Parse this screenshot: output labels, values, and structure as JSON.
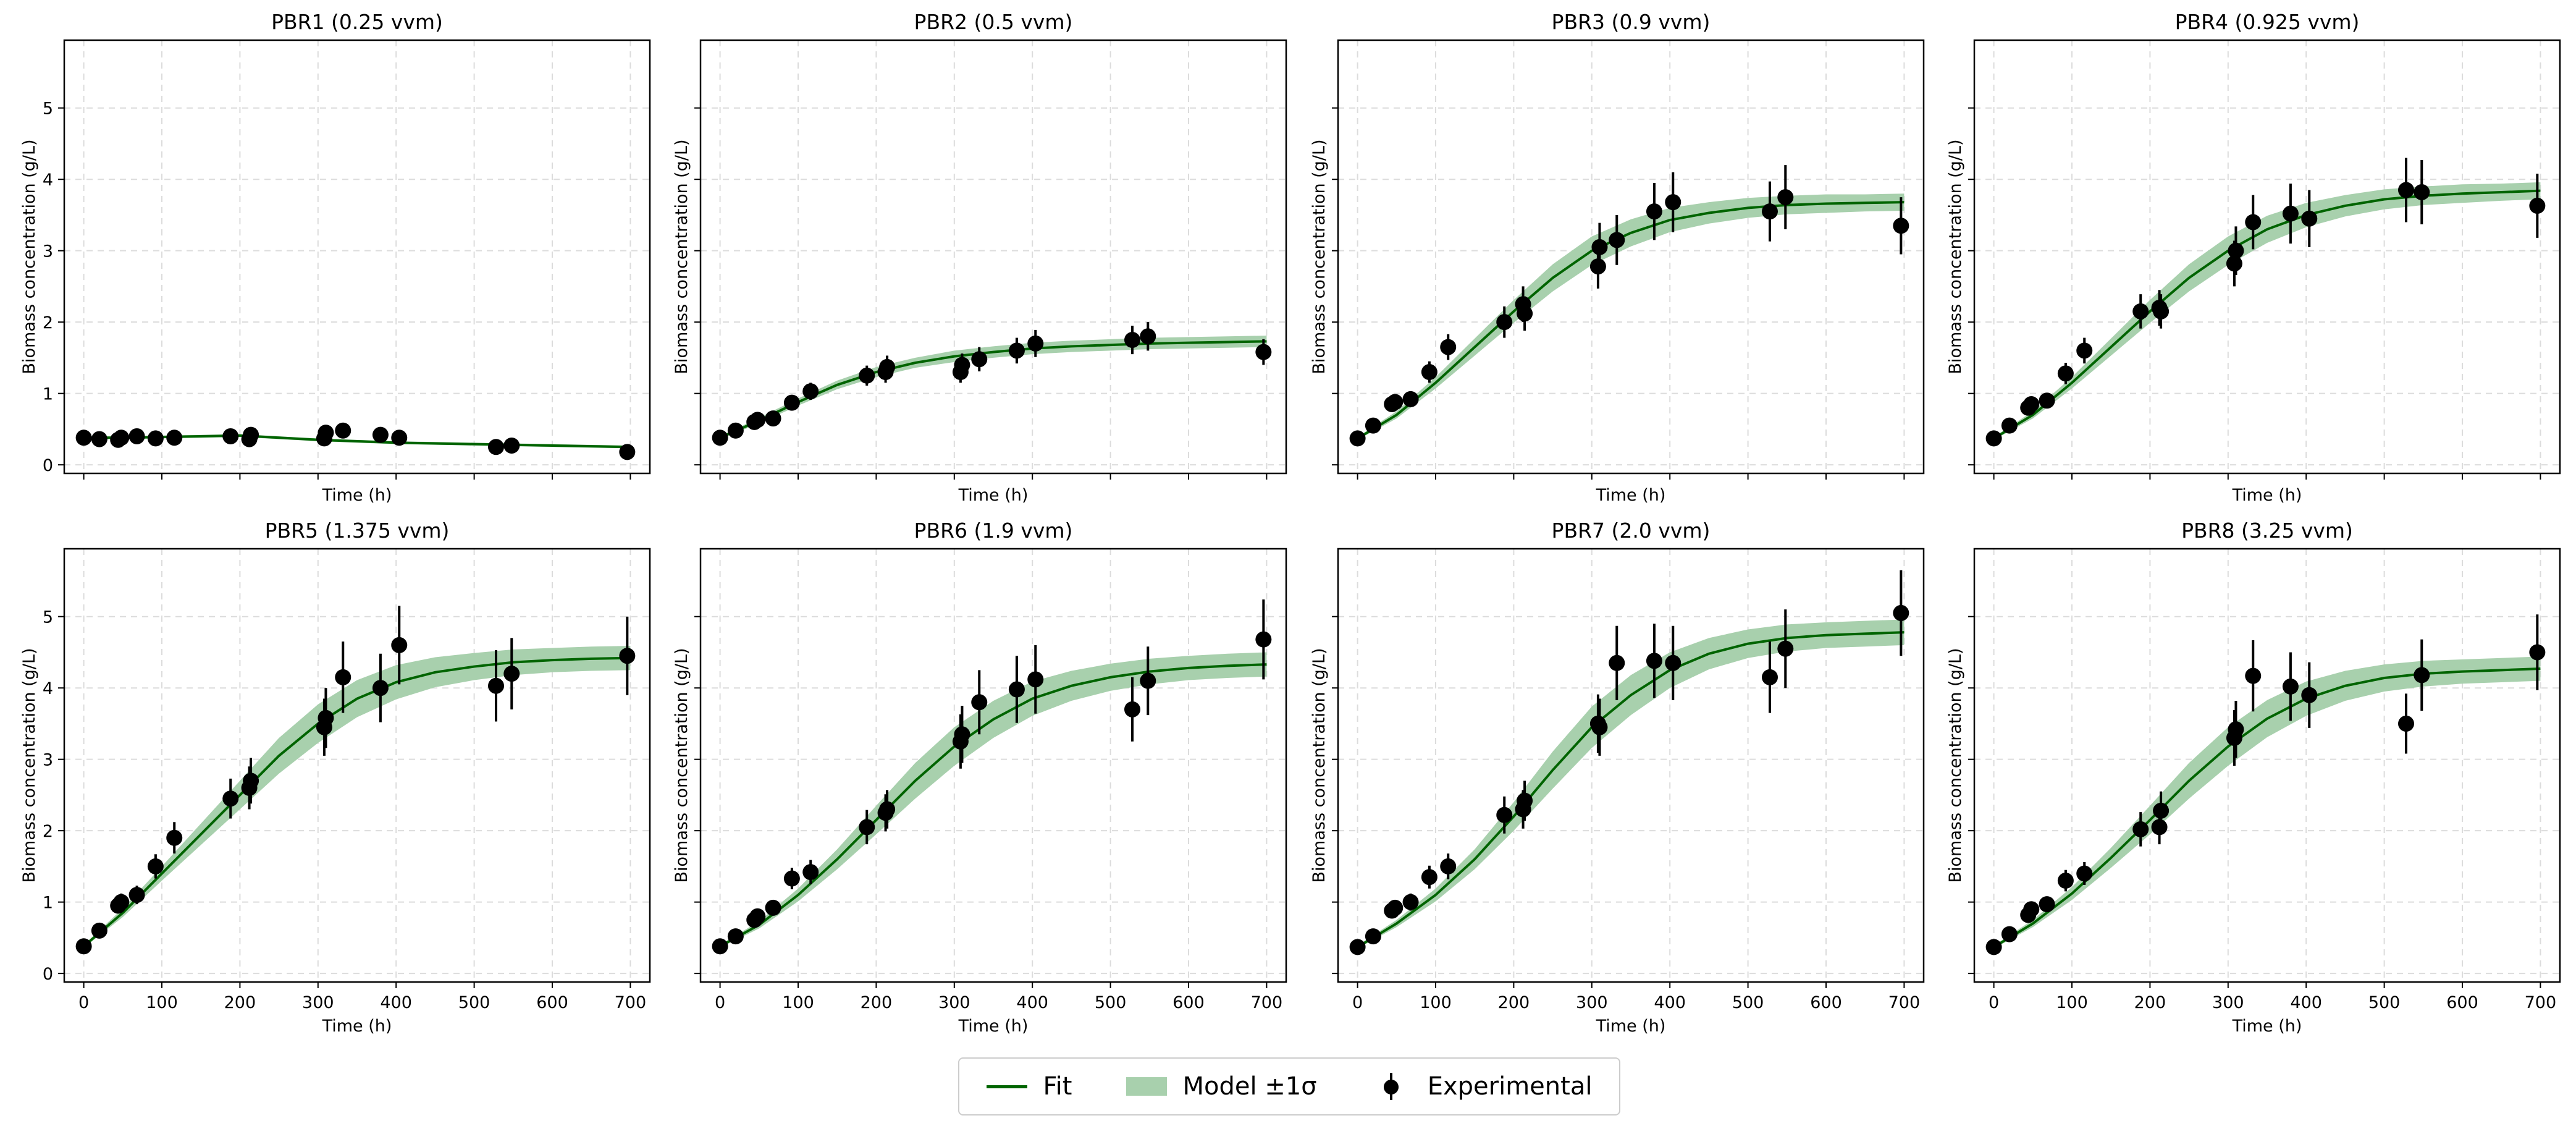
{
  "chart_data": {
    "type": "line",
    "layout": "2x4 subplots, shared axes",
    "xlabel": "Time (h)",
    "ylabel": "Biomass concentration (g/L)",
    "xlim": [
      -25,
      725
    ],
    "ylim": [
      -0.12,
      5.95
    ],
    "xticks": [
      0,
      100,
      200,
      300,
      400,
      500,
      600,
      700
    ],
    "yticks": [
      0,
      1,
      2,
      3,
      4,
      5
    ],
    "grid": true,
    "legend": {
      "placement": "bottom-center",
      "entries": [
        "Fit",
        "Model ±1σ",
        "Experimental"
      ]
    },
    "colors": {
      "fit": "#006400",
      "band": "#a8d0ad",
      "points": "#000000"
    },
    "fit_t": [
      0,
      50,
      100,
      150,
      200,
      250,
      300,
      350,
      400,
      450,
      500,
      550,
      600,
      650,
      700
    ],
    "exp_t": [
      0,
      20,
      44,
      48,
      68,
      92,
      116,
      188,
      212,
      214,
      308,
      310,
      332,
      380,
      404,
      528,
      548,
      696
    ],
    "panels": [
      {
        "title": "PBR1 (0.25 vvm)",
        "fit": [
          0.38,
          0.38,
          0.39,
          0.4,
          0.41,
          0.38,
          0.35,
          0.33,
          0.31,
          0.3,
          0.29,
          0.28,
          0.27,
          0.26,
          0.25
        ],
        "sigma": [
          0.02,
          0.02,
          0.02,
          0.02,
          0.02,
          0.02,
          0.02,
          0.02,
          0.02,
          0.02,
          0.02,
          0.02,
          0.02,
          0.02,
          0.02
        ],
        "y": [
          0.38,
          0.36,
          0.35,
          0.38,
          0.4,
          0.37,
          0.38,
          0.4,
          0.36,
          0.42,
          0.37,
          0.45,
          0.48,
          0.42,
          0.38,
          0.25,
          0.27,
          0.18
        ],
        "err": [
          0.05,
          0.05,
          0.05,
          0.05,
          0.05,
          0.05,
          0.05,
          0.05,
          0.05,
          0.05,
          0.05,
          0.05,
          0.05,
          0.05,
          0.05,
          0.05,
          0.05,
          0.05
        ]
      },
      {
        "title": "PBR2 (0.5 vvm)",
        "fit": [
          0.38,
          0.62,
          0.88,
          1.12,
          1.3,
          1.43,
          1.52,
          1.58,
          1.63,
          1.66,
          1.68,
          1.7,
          1.71,
          1.72,
          1.73
        ],
        "sigma": [
          0.02,
          0.04,
          0.05,
          0.06,
          0.07,
          0.07,
          0.08,
          0.08,
          0.08,
          0.08,
          0.08,
          0.08,
          0.08,
          0.08,
          0.08
        ],
        "y": [
          0.38,
          0.48,
          0.6,
          0.63,
          0.65,
          0.87,
          1.03,
          1.25,
          1.3,
          1.37,
          1.3,
          1.4,
          1.48,
          1.6,
          1.7,
          1.75,
          1.8,
          1.58
        ],
        "err": [
          0.05,
          0.06,
          0.07,
          0.08,
          0.08,
          0.1,
          0.12,
          0.14,
          0.15,
          0.16,
          0.15,
          0.16,
          0.17,
          0.18,
          0.19,
          0.2,
          0.2,
          0.18
        ]
      },
      {
        "title": "PBR3 (0.9 vvm)",
        "fit": [
          0.37,
          0.7,
          1.15,
          1.65,
          2.15,
          2.62,
          3.0,
          3.25,
          3.43,
          3.53,
          3.6,
          3.64,
          3.66,
          3.67,
          3.68
        ],
        "sigma": [
          0.02,
          0.05,
          0.08,
          0.12,
          0.16,
          0.19,
          0.2,
          0.19,
          0.17,
          0.15,
          0.14,
          0.13,
          0.13,
          0.12,
          0.12
        ],
        "y": [
          0.37,
          0.55,
          0.85,
          0.88,
          0.92,
          1.3,
          1.65,
          2.0,
          2.25,
          2.12,
          2.78,
          3.05,
          3.15,
          3.55,
          3.68,
          3.55,
          3.75,
          3.35
        ],
        "err": [
          0.05,
          0.07,
          0.1,
          0.1,
          0.11,
          0.15,
          0.18,
          0.22,
          0.25,
          0.24,
          0.31,
          0.34,
          0.35,
          0.4,
          0.42,
          0.42,
          0.45,
          0.4
        ]
      },
      {
        "title": "PBR4 (0.925 vvm)",
        "fit": [
          0.37,
          0.7,
          1.15,
          1.65,
          2.15,
          2.62,
          3.0,
          3.3,
          3.5,
          3.63,
          3.72,
          3.77,
          3.8,
          3.82,
          3.84
        ],
        "sigma": [
          0.02,
          0.05,
          0.08,
          0.12,
          0.16,
          0.19,
          0.2,
          0.19,
          0.17,
          0.15,
          0.14,
          0.13,
          0.13,
          0.12,
          0.12
        ],
        "y": [
          0.37,
          0.55,
          0.8,
          0.85,
          0.9,
          1.28,
          1.6,
          2.15,
          2.2,
          2.15,
          2.82,
          3.0,
          3.4,
          3.52,
          3.45,
          3.85,
          3.82,
          3.63
        ],
        "err": [
          0.05,
          0.07,
          0.1,
          0.1,
          0.11,
          0.15,
          0.18,
          0.24,
          0.25,
          0.24,
          0.32,
          0.34,
          0.38,
          0.42,
          0.4,
          0.45,
          0.45,
          0.45
        ]
      },
      {
        "title": "PBR5 (1.375 vvm)",
        "fit": [
          0.38,
          0.85,
          1.4,
          1.95,
          2.5,
          3.05,
          3.5,
          3.85,
          4.08,
          4.22,
          4.3,
          4.36,
          4.39,
          4.41,
          4.42
        ],
        "sigma": [
          0.02,
          0.06,
          0.1,
          0.15,
          0.2,
          0.25,
          0.27,
          0.26,
          0.24,
          0.21,
          0.19,
          0.18,
          0.17,
          0.17,
          0.17
        ],
        "y": [
          0.38,
          0.6,
          0.95,
          1.0,
          1.1,
          1.5,
          1.9,
          2.45,
          2.6,
          2.7,
          3.45,
          3.58,
          4.15,
          4.0,
          4.6,
          4.03,
          4.2,
          4.45
        ],
        "err": [
          0.05,
          0.07,
          0.11,
          0.12,
          0.13,
          0.17,
          0.22,
          0.28,
          0.3,
          0.32,
          0.4,
          0.42,
          0.5,
          0.48,
          0.55,
          0.5,
          0.5,
          0.55
        ]
      },
      {
        "title": "PBR6 (1.9 vvm)",
        "fit": [
          0.38,
          0.68,
          1.1,
          1.6,
          2.15,
          2.7,
          3.18,
          3.56,
          3.85,
          4.03,
          4.15,
          4.23,
          4.28,
          4.31,
          4.33
        ],
        "sigma": [
          0.02,
          0.05,
          0.09,
          0.14,
          0.2,
          0.25,
          0.27,
          0.26,
          0.24,
          0.21,
          0.19,
          0.18,
          0.17,
          0.17,
          0.17
        ],
        "y": [
          0.38,
          0.52,
          0.75,
          0.8,
          0.92,
          1.33,
          1.42,
          2.05,
          2.25,
          2.3,
          3.25,
          3.35,
          3.8,
          3.98,
          4.12,
          3.7,
          4.1,
          4.68
        ],
        "err": [
          0.05,
          0.06,
          0.09,
          0.1,
          0.11,
          0.15,
          0.17,
          0.24,
          0.26,
          0.27,
          0.38,
          0.4,
          0.45,
          0.47,
          0.48,
          0.45,
          0.48,
          0.56
        ]
      },
      {
        "title": "PBR7 (2.0 vvm)",
        "fit": [
          0.37,
          0.7,
          1.1,
          1.6,
          2.2,
          2.85,
          3.45,
          3.9,
          4.25,
          4.48,
          4.62,
          4.7,
          4.74,
          4.76,
          4.78
        ],
        "sigma": [
          0.02,
          0.05,
          0.09,
          0.14,
          0.2,
          0.26,
          0.29,
          0.28,
          0.25,
          0.22,
          0.2,
          0.19,
          0.18,
          0.18,
          0.18
        ],
        "y": [
          0.37,
          0.52,
          0.88,
          0.92,
          1.0,
          1.35,
          1.5,
          2.22,
          2.3,
          2.42,
          3.5,
          3.45,
          4.35,
          4.38,
          4.35,
          4.15,
          4.55,
          5.05
        ],
        "err": [
          0.05,
          0.06,
          0.1,
          0.11,
          0.12,
          0.16,
          0.18,
          0.26,
          0.27,
          0.28,
          0.41,
          0.4,
          0.52,
          0.52,
          0.52,
          0.5,
          0.55,
          0.6
        ]
      },
      {
        "title": "PBR8 (3.25 vvm)",
        "fit": [
          0.37,
          0.7,
          1.12,
          1.62,
          2.15,
          2.7,
          3.18,
          3.57,
          3.85,
          4.03,
          4.14,
          4.2,
          4.23,
          4.25,
          4.27
        ],
        "sigma": [
          0.02,
          0.05,
          0.09,
          0.14,
          0.2,
          0.25,
          0.27,
          0.26,
          0.24,
          0.21,
          0.19,
          0.18,
          0.17,
          0.17,
          0.17
        ],
        "y": [
          0.37,
          0.55,
          0.82,
          0.9,
          0.97,
          1.3,
          1.4,
          2.02,
          2.05,
          2.28,
          3.3,
          3.42,
          4.17,
          4.02,
          3.9,
          3.5,
          4.18,
          4.5
        ],
        "err": [
          0.05,
          0.07,
          0.1,
          0.1,
          0.11,
          0.15,
          0.16,
          0.24,
          0.24,
          0.27,
          0.39,
          0.4,
          0.5,
          0.48,
          0.46,
          0.42,
          0.5,
          0.53
        ]
      }
    ]
  }
}
